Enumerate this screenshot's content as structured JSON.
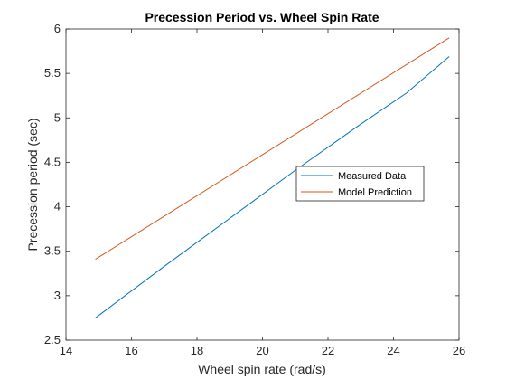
{
  "chart_data": {
    "type": "line",
    "title": "Precession Period vs. Wheel Spin Rate",
    "xlabel": "Wheel spin rate (rad/s)",
    "ylabel": "Precession period (sec)",
    "xlim": [
      14,
      26
    ],
    "ylim": [
      2.5,
      6
    ],
    "xticks": [
      14,
      16,
      18,
      20,
      22,
      24,
      26
    ],
    "yticks": [
      2.5,
      3,
      3.5,
      4,
      4.5,
      5,
      5.5,
      6
    ],
    "xtick_labels": [
      "14",
      "16",
      "18",
      "20",
      "22",
      "24",
      "26"
    ],
    "ytick_labels": [
      "2.5",
      "3",
      "3.5",
      "4",
      "4.5",
      "5",
      "5.5",
      "6"
    ],
    "grid": false,
    "legend_placement": "center-right",
    "series": [
      {
        "name": "Measured Data",
        "color": "#0072BD",
        "x": [
          14.9,
          17.0,
          19.0,
          21.0,
          23.0,
          24.4,
          25.7
        ],
        "y": [
          2.75,
          3.33,
          3.87,
          4.41,
          4.93,
          5.28,
          5.69
        ]
      },
      {
        "name": "Model Prediction",
        "color": "#D95319",
        "x": [
          14.9,
          25.7
        ],
        "y": [
          3.41,
          5.9
        ]
      }
    ]
  }
}
